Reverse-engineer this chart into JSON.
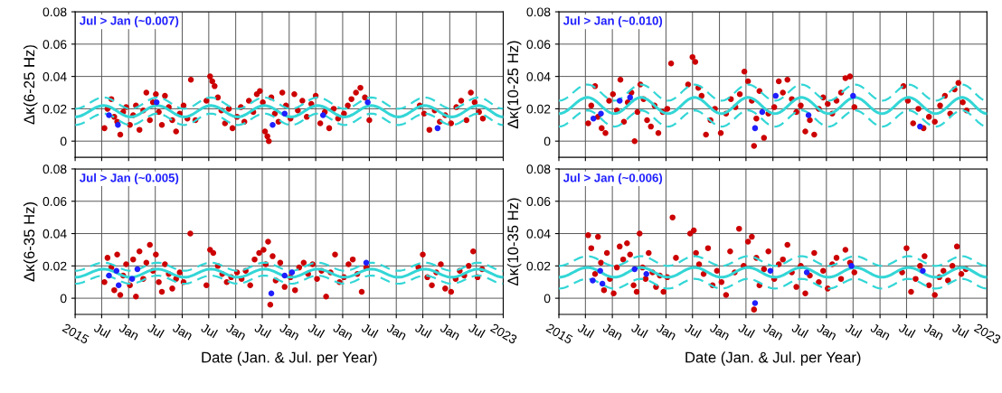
{
  "chart_data": [
    {
      "type": "scatter",
      "ylabel": "Δκ(6-25 Hz)",
      "annotations": [
        "Jul > Jan (~0.007)"
      ],
      "xlim": [
        "2015-01-01",
        "2023-01-01"
      ],
      "ylim": [
        -0.01,
        0.08
      ],
      "yticks": [
        0,
        0.02,
        0.04,
        0.06,
        0.08
      ],
      "xticks": [
        {
          "value": "2015-01-01",
          "label": null
        },
        {
          "value": "2015-07-01",
          "label": null
        },
        {
          "value": "2016-01-01",
          "label": null
        },
        {
          "value": "2016-07-01",
          "label": null
        },
        {
          "value": "2017-01-01",
          "label": null
        },
        {
          "value": "2017-07-01",
          "label": null
        },
        {
          "value": "2018-01-01",
          "label": null
        },
        {
          "value": "2018-07-01",
          "label": null
        },
        {
          "value": "2019-01-01",
          "label": null
        },
        {
          "value": "2019-07-01",
          "label": null
        },
        {
          "value": "2020-01-01",
          "label": null
        },
        {
          "value": "2020-07-01",
          "label": null
        },
        {
          "value": "2021-01-01",
          "label": null
        },
        {
          "value": "2021-07-01",
          "label": null
        },
        {
          "value": "2022-01-01",
          "label": null
        },
        {
          "value": "2022-07-01",
          "label": null
        },
        {
          "value": "2023-01-01",
          "label": null
        }
      ],
      "grid": true,
      "tick_labels": "y",
      "series": [
        {
          "type": "scatter",
          "marker": "circle",
          "color": "#cc0000",
          "x": [
            "2015-07-20",
            "2015-08-10",
            "2015-09-05",
            "2015-09-25",
            "2015-10-15",
            "2015-11-05",
            "2015-11-25",
            "2015-12-15",
            "2016-01-10",
            "2016-02-01",
            "2016-02-20",
            "2016-03-15",
            "2016-04-10",
            "2016-05-01",
            "2016-05-25",
            "2016-06-15",
            "2016-07-05",
            "2016-07-25",
            "2016-08-15",
            "2016-09-05",
            "2016-10-01",
            "2016-10-25",
            "2016-11-20",
            "2016-12-15",
            "2017-01-10",
            "2017-02-05",
            "2017-03-01",
            "2017-04-01",
            "2017-06-15",
            "2017-07-10",
            "2017-07-25",
            "2017-08-10",
            "2017-09-01",
            "2017-09-25",
            "2017-10-20",
            "2017-11-15",
            "2017-12-10",
            "2018-01-10",
            "2018-02-05",
            "2018-03-01",
            "2018-04-01",
            "2018-05-01",
            "2018-05-25",
            "2018-06-15",
            "2018-07-05",
            "2018-07-20",
            "2018-08-05",
            "2018-08-15",
            "2018-09-01",
            "2018-09-25",
            "2018-10-20",
            "2018-11-15",
            "2018-12-10",
            "2019-01-10",
            "2019-02-05",
            "2019-03-01",
            "2019-04-01",
            "2019-05-01",
            "2019-06-01",
            "2019-07-01",
            "2019-08-01",
            "2019-09-01",
            "2019-10-01",
            "2019-11-01",
            "2019-12-01",
            "2020-01-10",
            "2020-02-05",
            "2020-03-01",
            "2020-04-01",
            "2020-05-01",
            "2020-06-01",
            "2020-07-01",
            "2021-06-10",
            "2021-07-10",
            "2021-08-15",
            "2021-09-20",
            "2021-10-25",
            "2021-12-01",
            "2022-01-10",
            "2022-02-15",
            "2022-03-20",
            "2022-04-25",
            "2022-05-25",
            "2022-06-20",
            "2022-07-20",
            "2022-08-15"
          ],
          "values": [
            0.008,
            0.02,
            0.026,
            0.015,
            0.012,
            0.004,
            0.018,
            0.021,
            0.01,
            0.016,
            0.022,
            0.007,
            0.019,
            0.03,
            0.013,
            0.024,
            0.029,
            0.018,
            0.01,
            0.028,
            0.021,
            0.013,
            0.006,
            0.017,
            0.022,
            0.014,
            0.038,
            0.013,
            0.025,
            0.04,
            0.037,
            0.034,
            0.027,
            0.019,
            0.011,
            0.02,
            0.008,
            0.015,
            0.021,
            0.012,
            0.025,
            0.018,
            0.029,
            0.031,
            0.024,
            0.006,
            0.003,
            0.0,
            0.027,
            0.017,
            0.012,
            0.03,
            0.022,
            0.014,
            0.029,
            0.019,
            0.025,
            0.015,
            0.023,
            0.028,
            0.011,
            0.018,
            0.008,
            0.02,
            0.014,
            0.017,
            0.022,
            0.026,
            0.03,
            0.033,
            0.027,
            0.013,
            0.022,
            0.017,
            0.007,
            0.019,
            0.012,
            0.016,
            0.011,
            0.021,
            0.025,
            0.013,
            0.03,
            0.024,
            0.018,
            0.014
          ]
        },
        {
          "type": "scatter",
          "marker": "circle",
          "color": "#1f1fff",
          "x": [
            "2015-08-20",
            "2015-10-20",
            "2016-07-10",
            "2018-09-10",
            "2018-12-01",
            "2019-08-20",
            "2020-06-20",
            "2021-10-10"
          ],
          "values": [
            0.016,
            0.01,
            0.024,
            0.01,
            0.017,
            0.016,
            0.024,
            0.008
          ]
        },
        {
          "type": "line",
          "line_style": "solid",
          "color": "#33d6d6",
          "x": [
            "2015-01-01",
            "2015-07-15",
            "2016-01-15",
            "2016-07-15",
            "2017-01-15",
            "2017-07-15",
            "2018-01-15",
            "2018-07-15",
            "2019-01-15",
            "2019-07-15",
            "2020-01-15",
            "2020-07-15",
            "2021-01-15",
            "2021-07-15",
            "2022-01-15",
            "2022-07-15",
            "2023-01-01"
          ],
          "values": [
            0.015,
            0.022,
            0.015,
            0.022,
            0.015,
            0.022,
            0.015,
            0.022,
            0.015,
            0.022,
            0.015,
            0.022,
            0.015,
            0.022,
            0.015,
            0.022,
            0.015
          ]
        },
        {
          "type": "line",
          "line_style": "dashed",
          "color": "#33d6d6",
          "x": [
            "2015-01-01",
            "2015-07-15",
            "2016-01-15",
            "2016-07-15",
            "2017-01-15",
            "2017-07-15",
            "2018-01-15",
            "2018-07-15",
            "2019-01-15",
            "2019-07-15",
            "2020-01-15",
            "2020-07-15",
            "2021-01-15",
            "2021-07-15",
            "2022-01-15",
            "2022-07-15",
            "2023-01-01"
          ],
          "values": [
            0.02,
            0.027,
            0.02,
            0.027,
            0.02,
            0.027,
            0.02,
            0.027,
            0.02,
            0.027,
            0.02,
            0.027,
            0.02,
            0.027,
            0.02,
            0.027,
            0.02
          ]
        },
        {
          "type": "line",
          "line_style": "dashed",
          "color": "#33d6d6",
          "x": [
            "2015-01-01",
            "2015-07-15",
            "2016-01-15",
            "2016-07-15",
            "2017-01-15",
            "2017-07-15",
            "2018-01-15",
            "2018-07-15",
            "2019-01-15",
            "2019-07-15",
            "2020-01-15",
            "2020-07-15",
            "2021-01-15",
            "2021-07-15",
            "2022-01-15",
            "2022-07-15",
            "2023-01-01"
          ],
          "values": [
            0.01,
            0.017,
            0.01,
            0.017,
            0.01,
            0.017,
            0.01,
            0.017,
            0.01,
            0.017,
            0.01,
            0.017,
            0.01,
            0.017,
            0.01,
            0.017,
            0.01
          ]
        }
      ]
    },
    {
      "type": "scatter",
      "ylabel": "Δκ(10-25 Hz)",
      "annotations": [
        "Jul > Jan (~0.010)"
      ],
      "xlim": [
        "2015-01-01",
        "2023-01-01"
      ],
      "ylim": [
        -0.01,
        0.08
      ],
      "yticks": [
        0,
        0.02,
        0.04,
        0.06,
        0.08
      ],
      "xticks": [
        {
          "value": "2015-01-01",
          "label": null
        },
        {
          "value": "2015-07-01",
          "label": null
        },
        {
          "value": "2016-01-01",
          "label": null
        },
        {
          "value": "2016-07-01",
          "label": null
        },
        {
          "value": "2017-01-01",
          "label": null
        },
        {
          "value": "2017-07-01",
          "label": null
        },
        {
          "value": "2018-01-01",
          "label": null
        },
        {
          "value": "2018-07-01",
          "label": null
        },
        {
          "value": "2019-01-01",
          "label": null
        },
        {
          "value": "2019-07-01",
          "label": null
        },
        {
          "value": "2020-01-01",
          "label": null
        },
        {
          "value": "2020-07-01",
          "label": null
        },
        {
          "value": "2021-01-01",
          "label": null
        },
        {
          "value": "2021-07-01",
          "label": null
        },
        {
          "value": "2022-01-01",
          "label": null
        },
        {
          "value": "2022-07-01",
          "label": null
        },
        {
          "value": "2023-01-01",
          "label": null
        }
      ],
      "grid": true,
      "tick_labels": "y",
      "series": [
        {
          "type": "scatter",
          "marker": "circle",
          "color": "#cc0000",
          "x": [
            "2015-07-20",
            "2015-08-10",
            "2015-09-05",
            "2015-09-25",
            "2015-10-20",
            "2015-11-15",
            "2015-12-10",
            "2016-01-05",
            "2016-02-01",
            "2016-02-25",
            "2016-03-20",
            "2016-04-15",
            "2016-05-10",
            "2016-06-01",
            "2016-06-20",
            "2016-07-10",
            "2016-08-01",
            "2016-08-25",
            "2016-09-20",
            "2016-10-15",
            "2016-11-10",
            "2016-12-10",
            "2017-01-10",
            "2017-02-05",
            "2017-06-01",
            "2017-07-01",
            "2017-07-20",
            "2017-08-10",
            "2017-09-01",
            "2017-10-01",
            "2017-11-01",
            "2017-12-01",
            "2018-01-10",
            "2018-02-15",
            "2018-03-20",
            "2018-04-20",
            "2018-05-20",
            "2018-06-20",
            "2018-07-15",
            "2018-08-10",
            "2018-08-25",
            "2018-09-10",
            "2018-10-01",
            "2018-11-01",
            "2018-12-01",
            "2019-01-10",
            "2019-02-10",
            "2019-03-10",
            "2019-04-10",
            "2019-05-10",
            "2019-06-10",
            "2019-07-10",
            "2019-08-10",
            "2019-09-10",
            "2019-10-10",
            "2019-11-10",
            "2019-12-10",
            "2020-01-10",
            "2020-02-10",
            "2020-03-10",
            "2020-04-10",
            "2020-05-10",
            "2020-06-10",
            "2020-07-10",
            "2021-06-10",
            "2021-07-10",
            "2021-08-15",
            "2021-09-20",
            "2021-10-25",
            "2021-12-01",
            "2022-01-10",
            "2022-02-15",
            "2022-03-20",
            "2022-04-25",
            "2022-05-25",
            "2022-06-20",
            "2022-07-20",
            "2022-08-15"
          ],
          "values": [
            0.011,
            0.022,
            0.034,
            0.015,
            0.008,
            0.005,
            0.025,
            0.029,
            0.019,
            0.038,
            0.012,
            0.024,
            0.03,
            0.0,
            0.018,
            0.035,
            0.026,
            0.013,
            0.009,
            0.022,
            0.005,
            0.018,
            0.02,
            0.048,
            0.035,
            0.052,
            0.049,
            0.033,
            0.028,
            0.004,
            0.013,
            0.02,
            0.005,
            0.017,
            0.026,
            0.021,
            0.029,
            0.043,
            0.037,
            0.025,
            -0.003,
            0.014,
            0.031,
            0.002,
            0.017,
            0.021,
            0.037,
            0.03,
            0.038,
            0.026,
            0.018,
            0.022,
            0.006,
            0.013,
            0.004,
            0.02,
            0.027,
            0.023,
            0.017,
            0.025,
            0.03,
            0.039,
            0.04,
            0.021,
            0.034,
            0.025,
            0.011,
            0.02,
            0.008,
            0.015,
            0.012,
            0.022,
            0.028,
            0.017,
            0.032,
            0.036,
            0.024,
            0.019
          ]
        },
        {
          "type": "scatter",
          "marker": "circle",
          "color": "#1f1fff",
          "x": [
            "2015-08-25",
            "2015-10-15",
            "2016-02-20",
            "2016-05-01",
            "2018-09-01",
            "2018-10-20",
            "2019-01-20",
            "2019-09-01",
            "2020-07-01",
            "2021-10-01"
          ],
          "values": [
            0.014,
            0.017,
            0.025,
            0.027,
            0.008,
            0.018,
            0.028,
            0.016,
            0.028,
            0.009
          ]
        },
        {
          "type": "line",
          "line_style": "solid",
          "color": "#33d6d6",
          "x": [
            "2015-01-01",
            "2015-07-15",
            "2016-01-15",
            "2016-07-15",
            "2017-01-15",
            "2017-07-15",
            "2018-01-15",
            "2018-07-15",
            "2019-01-15",
            "2019-07-15",
            "2020-01-15",
            "2020-07-15",
            "2021-01-15",
            "2021-07-15",
            "2022-01-15",
            "2022-07-15",
            "2023-01-01"
          ],
          "values": [
            0.017,
            0.027,
            0.017,
            0.027,
            0.017,
            0.027,
            0.017,
            0.027,
            0.017,
            0.027,
            0.017,
            0.027,
            0.017,
            0.027,
            0.017,
            0.027,
            0.017
          ]
        },
        {
          "type": "line",
          "line_style": "dashed",
          "color": "#33d6d6",
          "x": [
            "2015-01-01",
            "2015-07-15",
            "2016-01-15",
            "2016-07-15",
            "2017-01-15",
            "2017-07-15",
            "2018-01-15",
            "2018-07-15",
            "2019-01-15",
            "2019-07-15",
            "2020-01-15",
            "2020-07-15",
            "2021-01-15",
            "2021-07-15",
            "2022-01-15",
            "2022-07-15",
            "2023-01-01"
          ],
          "values": [
            0.025,
            0.035,
            0.025,
            0.035,
            0.025,
            0.035,
            0.025,
            0.035,
            0.025,
            0.035,
            0.025,
            0.035,
            0.025,
            0.035,
            0.025,
            0.035,
            0.025
          ]
        },
        {
          "type": "line",
          "line_style": "dashed",
          "color": "#33d6d6",
          "x": [
            "2015-01-01",
            "2015-07-15",
            "2016-01-15",
            "2016-07-15",
            "2017-01-15",
            "2017-07-15",
            "2018-01-15",
            "2018-07-15",
            "2019-01-15",
            "2019-07-15",
            "2020-01-15",
            "2020-07-15",
            "2021-01-15",
            "2021-07-15",
            "2022-01-15",
            "2022-07-15",
            "2023-01-01"
          ],
          "values": [
            0.009,
            0.019,
            0.009,
            0.019,
            0.009,
            0.019,
            0.009,
            0.019,
            0.009,
            0.019,
            0.009,
            0.019,
            0.009,
            0.019,
            0.009,
            0.019,
            0.009
          ]
        }
      ]
    },
    {
      "type": "scatter",
      "ylabel": "Δκ(6-35 Hz)",
      "xlabel": "Date (Jan. & Jul. per Year)",
      "annotations": [
        "Jul > Jan (~0.005)"
      ],
      "xlim": [
        "2015-01-01",
        "2023-01-01"
      ],
      "ylim": [
        -0.01,
        0.08
      ],
      "yticks": [
        0,
        0.02,
        0.04,
        0.06,
        0.08
      ],
      "xticks": [
        {
          "value": "2015-01-01",
          "label": "2015"
        },
        {
          "value": "2015-07-01",
          "label": "Jul"
        },
        {
          "value": "2016-01-01",
          "label": "Jan"
        },
        {
          "value": "2016-07-01",
          "label": "Jul"
        },
        {
          "value": "2017-01-01",
          "label": "Jan"
        },
        {
          "value": "2017-07-01",
          "label": "Jul"
        },
        {
          "value": "2018-01-01",
          "label": "Jan"
        },
        {
          "value": "2018-07-01",
          "label": "Jul"
        },
        {
          "value": "2019-01-01",
          "label": "Jan"
        },
        {
          "value": "2019-07-01",
          "label": "Jul"
        },
        {
          "value": "2020-01-01",
          "label": "Jan"
        },
        {
          "value": "2020-07-01",
          "label": "Jul"
        },
        {
          "value": "2021-01-01",
          "label": "Jan"
        },
        {
          "value": "2021-07-01",
          "label": "Jul"
        },
        {
          "value": "2022-01-01",
          "label": "Jan"
        },
        {
          "value": "2022-07-01",
          "label": "Jul"
        },
        {
          "value": "2023-01-01",
          "label": "2023"
        }
      ],
      "grid": true,
      "series": [
        {
          "type": "scatter",
          "marker": "circle",
          "color": "#cc0000",
          "x": [
            "2015-07-20",
            "2015-08-10",
            "2015-09-05",
            "2015-09-25",
            "2015-10-15",
            "2015-11-05",
            "2015-11-25",
            "2015-12-15",
            "2016-01-10",
            "2016-02-01",
            "2016-02-20",
            "2016-03-15",
            "2016-04-10",
            "2016-05-01",
            "2016-05-25",
            "2016-06-15",
            "2016-07-05",
            "2016-07-25",
            "2016-08-15",
            "2016-09-05",
            "2016-10-01",
            "2016-10-25",
            "2016-11-20",
            "2016-12-15",
            "2017-01-10",
            "2017-02-25",
            "2017-06-15",
            "2017-07-10",
            "2017-08-01",
            "2017-09-01",
            "2017-10-01",
            "2017-11-01",
            "2017-12-01",
            "2018-01-10",
            "2018-02-10",
            "2018-03-10",
            "2018-04-10",
            "2018-05-10",
            "2018-06-10",
            "2018-07-10",
            "2018-07-25",
            "2018-08-10",
            "2018-08-25",
            "2018-09-10",
            "2018-10-01",
            "2018-11-01",
            "2018-12-01",
            "2019-01-10",
            "2019-02-10",
            "2019-03-10",
            "2019-04-10",
            "2019-05-10",
            "2019-06-10",
            "2019-07-10",
            "2019-08-10",
            "2019-09-10",
            "2019-10-10",
            "2019-11-10",
            "2019-12-10",
            "2020-01-10",
            "2020-02-10",
            "2020-03-10",
            "2020-04-10",
            "2020-05-10",
            "2020-06-10",
            "2021-06-01",
            "2021-07-01",
            "2021-08-01",
            "2021-09-01",
            "2021-10-01",
            "2021-11-01",
            "2021-12-01",
            "2022-01-10",
            "2022-02-10",
            "2022-03-10",
            "2022-04-10",
            "2022-05-10",
            "2022-06-10",
            "2022-07-10",
            "2022-08-10"
          ],
          "values": [
            0.01,
            0.025,
            0.019,
            0.005,
            0.027,
            0.002,
            0.014,
            0.021,
            0.008,
            0.024,
            0.001,
            0.029,
            0.012,
            0.022,
            0.033,
            0.017,
            0.027,
            0.01,
            0.004,
            0.021,
            0.015,
            0.006,
            0.012,
            0.016,
            0.01,
            0.04,
            0.008,
            0.03,
            0.028,
            0.02,
            0.015,
            0.01,
            0.013,
            0.016,
            0.012,
            0.017,
            0.008,
            0.024,
            0.028,
            0.03,
            0.021,
            0.035,
            -0.004,
            0.026,
            0.011,
            0.022,
            0.007,
            0.013,
            0.005,
            0.019,
            0.022,
            0.015,
            0.021,
            0.012,
            0.017,
            0.001,
            0.016,
            0.027,
            0.01,
            0.013,
            0.021,
            0.024,
            0.015,
            0.004,
            0.019,
            0.019,
            0.027,
            0.013,
            0.008,
            0.016,
            0.021,
            0.006,
            0.004,
            0.012,
            0.017,
            0.014,
            0.02,
            0.029,
            0.013,
            0.018
          ]
        },
        {
          "type": "scatter",
          "marker": "circle",
          "color": "#1f1fff",
          "x": [
            "2015-08-20",
            "2015-10-10",
            "2015-10-25",
            "2016-01-25",
            "2016-03-01",
            "2018-09-01",
            "2018-12-01",
            "2019-01-20",
            "2020-06-10"
          ],
          "values": [
            0.014,
            0.017,
            0.008,
            0.012,
            0.018,
            0.003,
            0.014,
            0.016,
            0.022
          ]
        },
        {
          "type": "line",
          "line_style": "solid",
          "color": "#33d6d6",
          "x": [
            "2015-01-01",
            "2015-07-15",
            "2016-01-15",
            "2016-07-15",
            "2017-01-15",
            "2017-07-15",
            "2018-01-15",
            "2018-07-15",
            "2019-01-15",
            "2019-07-15",
            "2020-01-15",
            "2020-07-15",
            "2021-01-15",
            "2021-07-15",
            "2022-01-15",
            "2022-07-15",
            "2023-01-01"
          ],
          "values": [
            0.013,
            0.018,
            0.013,
            0.018,
            0.013,
            0.018,
            0.013,
            0.018,
            0.013,
            0.018,
            0.013,
            0.018,
            0.013,
            0.018,
            0.013,
            0.018,
            0.013
          ]
        },
        {
          "type": "line",
          "line_style": "dashed",
          "color": "#33d6d6",
          "x": [
            "2015-01-01",
            "2015-07-15",
            "2016-01-15",
            "2016-07-15",
            "2017-01-15",
            "2017-07-15",
            "2018-01-15",
            "2018-07-15",
            "2019-01-15",
            "2019-07-15",
            "2020-01-15",
            "2020-07-15",
            "2021-01-15",
            "2021-07-15",
            "2022-01-15",
            "2022-07-15",
            "2023-01-01"
          ],
          "values": [
            0.017,
            0.022,
            0.017,
            0.022,
            0.017,
            0.022,
            0.017,
            0.022,
            0.017,
            0.022,
            0.017,
            0.022,
            0.017,
            0.022,
            0.017,
            0.022,
            0.017
          ]
        },
        {
          "type": "line",
          "line_style": "dashed",
          "color": "#33d6d6",
          "x": [
            "2015-01-01",
            "2015-07-15",
            "2016-01-15",
            "2016-07-15",
            "2017-01-15",
            "2017-07-15",
            "2018-01-15",
            "2018-07-15",
            "2019-01-15",
            "2019-07-15",
            "2020-01-15",
            "2020-07-15",
            "2021-01-15",
            "2021-07-15",
            "2022-01-15",
            "2022-07-15",
            "2023-01-01"
          ],
          "values": [
            0.009,
            0.014,
            0.009,
            0.014,
            0.009,
            0.014,
            0.009,
            0.014,
            0.009,
            0.014,
            0.009,
            0.014,
            0.009,
            0.014,
            0.009,
            0.014,
            0.009
          ]
        }
      ]
    },
    {
      "type": "scatter",
      "ylabel": "Δκ(10-35 Hz)",
      "xlabel": "Date (Jan. & Jul. per Year)",
      "annotations": [
        "Jul > Jan (~0.006)"
      ],
      "xlim": [
        "2015-01-01",
        "2023-01-01"
      ],
      "ylim": [
        -0.01,
        0.08
      ],
      "yticks": [
        0,
        0.02,
        0.04,
        0.06,
        0.08
      ],
      "xticks": [
        {
          "value": "2015-01-01",
          "label": "2015"
        },
        {
          "value": "2015-07-01",
          "label": "Jul"
        },
        {
          "value": "2016-01-01",
          "label": "Jan"
        },
        {
          "value": "2016-07-01",
          "label": "Jul"
        },
        {
          "value": "2017-01-01",
          "label": "Jan"
        },
        {
          "value": "2017-07-01",
          "label": "Jul"
        },
        {
          "value": "2018-01-01",
          "label": "Jan"
        },
        {
          "value": "2018-07-01",
          "label": "Jul"
        },
        {
          "value": "2019-01-01",
          "label": "Jan"
        },
        {
          "value": "2019-07-01",
          "label": "Jul"
        },
        {
          "value": "2020-01-01",
          "label": "Jan"
        },
        {
          "value": "2020-07-01",
          "label": "Jul"
        },
        {
          "value": "2021-01-01",
          "label": "Jan"
        },
        {
          "value": "2021-07-01",
          "label": "Jul"
        },
        {
          "value": "2022-01-01",
          "label": "Jan"
        },
        {
          "value": "2022-07-01",
          "label": "Jul"
        },
        {
          "value": "2023-01-01",
          "label": "2023"
        }
      ],
      "grid": true,
      "series": [
        {
          "type": "scatter",
          "marker": "circle",
          "color": "#cc0000",
          "x": [
            "2015-07-20",
            "2015-08-10",
            "2015-09-05",
            "2015-09-25",
            "2015-10-15",
            "2015-11-05",
            "2015-11-25",
            "2015-12-15",
            "2016-01-10",
            "2016-02-01",
            "2016-02-20",
            "2016-03-15",
            "2016-04-10",
            "2016-05-01",
            "2016-05-25",
            "2016-06-15",
            "2016-07-05",
            "2016-07-25",
            "2016-08-15",
            "2016-09-05",
            "2016-10-01",
            "2016-10-25",
            "2016-11-20",
            "2016-12-15",
            "2017-01-10",
            "2017-02-15",
            "2017-03-10",
            "2017-06-15",
            "2017-07-10",
            "2017-07-25",
            "2017-08-15",
            "2017-09-15",
            "2017-10-15",
            "2017-11-15",
            "2017-12-15",
            "2018-01-15",
            "2018-02-15",
            "2018-03-15",
            "2018-04-15",
            "2018-05-15",
            "2018-06-15",
            "2018-07-15",
            "2018-08-10",
            "2018-08-25",
            "2018-09-10",
            "2018-10-01",
            "2018-11-01",
            "2018-12-01",
            "2019-01-10",
            "2019-02-10",
            "2019-03-10",
            "2019-04-10",
            "2019-05-10",
            "2019-06-10",
            "2019-07-10",
            "2019-08-10",
            "2019-09-10",
            "2019-10-10",
            "2019-11-10",
            "2019-12-10",
            "2020-01-10",
            "2020-02-10",
            "2020-03-10",
            "2020-04-10",
            "2020-05-10",
            "2020-06-10",
            "2020-07-10",
            "2021-06-01",
            "2021-07-01",
            "2021-08-01",
            "2021-09-01",
            "2021-10-01",
            "2021-11-01",
            "2021-12-01",
            "2022-01-10",
            "2022-02-10",
            "2022-03-10",
            "2022-04-10",
            "2022-05-10",
            "2022-06-10",
            "2022-07-10",
            "2022-08-10"
          ],
          "values": [
            0.039,
            0.031,
            0.015,
            0.038,
            0.022,
            0.005,
            0.028,
            0.012,
            0.003,
            0.019,
            0.032,
            0.024,
            0.034,
            0.027,
            0.008,
            0.004,
            0.04,
            0.019,
            0.012,
            0.028,
            0.016,
            0.007,
            0.014,
            0.004,
            0.013,
            0.05,
            0.025,
            0.04,
            0.042,
            0.028,
            0.021,
            0.015,
            0.031,
            0.008,
            0.017,
            0.01,
            0.002,
            0.029,
            0.016,
            0.043,
            0.02,
            0.035,
            0.038,
            -0.007,
            0.025,
            0.008,
            0.018,
            0.029,
            0.012,
            0.021,
            0.024,
            0.033,
            0.016,
            0.007,
            0.02,
            0.003,
            0.014,
            0.028,
            0.01,
            0.017,
            0.006,
            0.021,
            0.025,
            0.012,
            0.03,
            0.022,
            0.016,
            0.016,
            0.031,
            0.004,
            0.012,
            0.02,
            0.026,
            0.008,
            0.002,
            0.013,
            0.017,
            0.011,
            0.02,
            0.032,
            0.015,
            0.018
          ]
        },
        {
          "type": "scatter",
          "marker": "circle",
          "color": "#1f1fff",
          "x": [
            "2015-08-20",
            "2015-10-10",
            "2015-10-25",
            "2016-06-01",
            "2016-08-20",
            "2018-09-01",
            "2018-12-15",
            "2019-08-20",
            "2020-06-20",
            "2021-10-20"
          ],
          "values": [
            0.011,
            0.017,
            0.009,
            0.018,
            0.015,
            -0.003,
            0.017,
            0.016,
            0.02,
            0.017
          ]
        },
        {
          "type": "line",
          "line_style": "solid",
          "color": "#33d6d6",
          "x": [
            "2015-01-01",
            "2015-07-15",
            "2016-01-15",
            "2016-07-15",
            "2017-01-15",
            "2017-07-15",
            "2018-01-15",
            "2018-07-15",
            "2019-01-15",
            "2019-07-15",
            "2020-01-15",
            "2020-07-15",
            "2021-01-15",
            "2021-07-15",
            "2022-01-15",
            "2022-07-15",
            "2023-01-01"
          ],
          "values": [
            0.013,
            0.019,
            0.013,
            0.019,
            0.013,
            0.019,
            0.013,
            0.019,
            0.013,
            0.019,
            0.013,
            0.019,
            0.013,
            0.019,
            0.013,
            0.019,
            0.013
          ]
        },
        {
          "type": "line",
          "line_style": "dashed",
          "color": "#33d6d6",
          "x": [
            "2015-01-01",
            "2015-07-15",
            "2016-01-15",
            "2016-07-15",
            "2017-01-15",
            "2017-07-15",
            "2018-01-15",
            "2018-07-15",
            "2019-01-15",
            "2019-07-15",
            "2020-01-15",
            "2020-07-15",
            "2021-01-15",
            "2021-07-15",
            "2022-01-15",
            "2022-07-15",
            "2023-01-01"
          ],
          "values": [
            0.02,
            0.026,
            0.02,
            0.026,
            0.02,
            0.026,
            0.02,
            0.026,
            0.02,
            0.026,
            0.02,
            0.026,
            0.02,
            0.026,
            0.02,
            0.026,
            0.02
          ]
        },
        {
          "type": "line",
          "line_style": "dashed",
          "color": "#33d6d6",
          "x": [
            "2015-01-01",
            "2015-07-15",
            "2016-01-15",
            "2016-07-15",
            "2017-01-15",
            "2017-07-15",
            "2018-01-15",
            "2018-07-15",
            "2019-01-15",
            "2019-07-15",
            "2020-01-15",
            "2020-07-15",
            "2021-01-15",
            "2021-07-15",
            "2022-01-15",
            "2022-07-15",
            "2023-01-01"
          ],
          "values": [
            0.006,
            0.012,
            0.006,
            0.012,
            0.006,
            0.012,
            0.006,
            0.012,
            0.006,
            0.012,
            0.006,
            0.012,
            0.006,
            0.012,
            0.006,
            0.012,
            0.006
          ]
        }
      ]
    }
  ]
}
